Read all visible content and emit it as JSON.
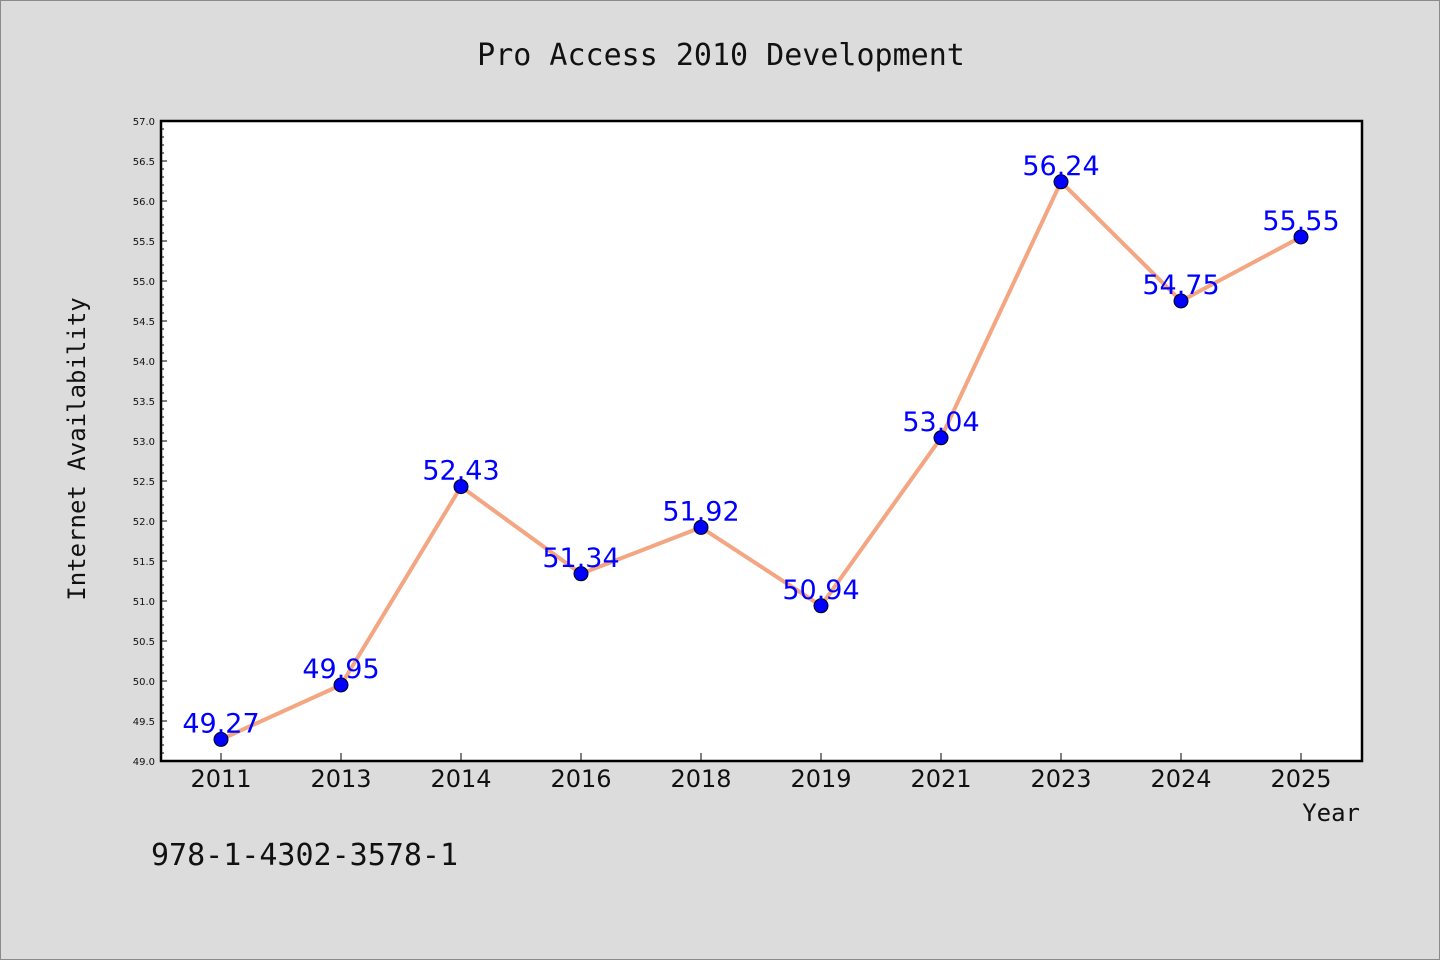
{
  "chart_data": {
    "type": "line",
    "title": "Pro Access 2010 Development",
    "xlabel": "Year",
    "ylabel": "Internet Availability",
    "categories": [
      "2011",
      "2013",
      "2014",
      "2016",
      "2018",
      "2019",
      "2021",
      "2023",
      "2024",
      "2025"
    ],
    "series": [
      {
        "values": [
          49.27,
          49.95,
          52.43,
          51.34,
          51.92,
          50.94,
          53.04,
          56.24,
          54.75,
          55.55
        ],
        "labels": [
          "49.27",
          "49.95",
          "52.43",
          "51.34",
          "51.92",
          "50.94",
          "53.04",
          "56.24",
          "54.75",
          "55.55"
        ]
      }
    ],
    "ylim": [
      49.0,
      57.0
    ],
    "yticks": [
      "49.0",
      "49.5",
      "50.0",
      "50.5",
      "51.0",
      "51.5",
      "52.0",
      "52.5",
      "53.0",
      "53.5",
      "54.0",
      "54.5",
      "55.0",
      "55.5",
      "56.0",
      "56.5",
      "57.0"
    ],
    "grid": false,
    "line_color": "#f4a582",
    "marker_color": "#0000ff",
    "label_color": "#0000ff",
    "background": "#dcdcdc",
    "plot_background": "#ffffff"
  },
  "footer": {
    "isbn": "978-1-4302-3578-1"
  }
}
